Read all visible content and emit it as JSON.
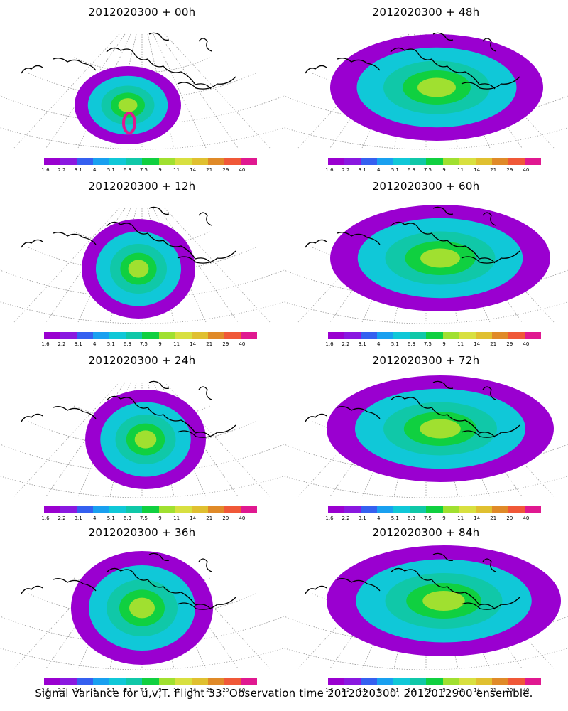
{
  "panels": [
    {
      "title": "2012020300 + 00h",
      "blob": {
        "hot": true
      }
    },
    {
      "title": "2012020300 + 48h",
      "blob": {}
    },
    {
      "title": "2012020300 + 12h",
      "blob": {}
    },
    {
      "title": "2012020300 + 60h",
      "blob": {}
    },
    {
      "title": "2012020300 + 24h",
      "blob": {}
    },
    {
      "title": "2012020300 + 72h",
      "blob": {}
    },
    {
      "title": "2012020300 + 36h",
      "blob": {}
    },
    {
      "title": "2012020300 + 84h",
      "blob": {}
    }
  ],
  "colorbar": {
    "colors": [
      "#9a00d0",
      "#8a18e0",
      "#3560f0",
      "#19a0f0",
      "#10c8d8",
      "#10c8a8",
      "#10d040",
      "#a0e030",
      "#d8e040",
      "#e0c030",
      "#e08a28",
      "#f05838",
      "#e01890"
    ],
    "labels": [
      "1.6",
      "2.2",
      "3.1",
      "4",
      "5.1",
      "6.3",
      "7.5",
      "9",
      "11",
      "14",
      "21",
      "29",
      "40"
    ]
  },
  "footer": "Signal Variance for u,v,T. Flight 33. Observation time 2012020300. 2012012900 ensemble."
}
